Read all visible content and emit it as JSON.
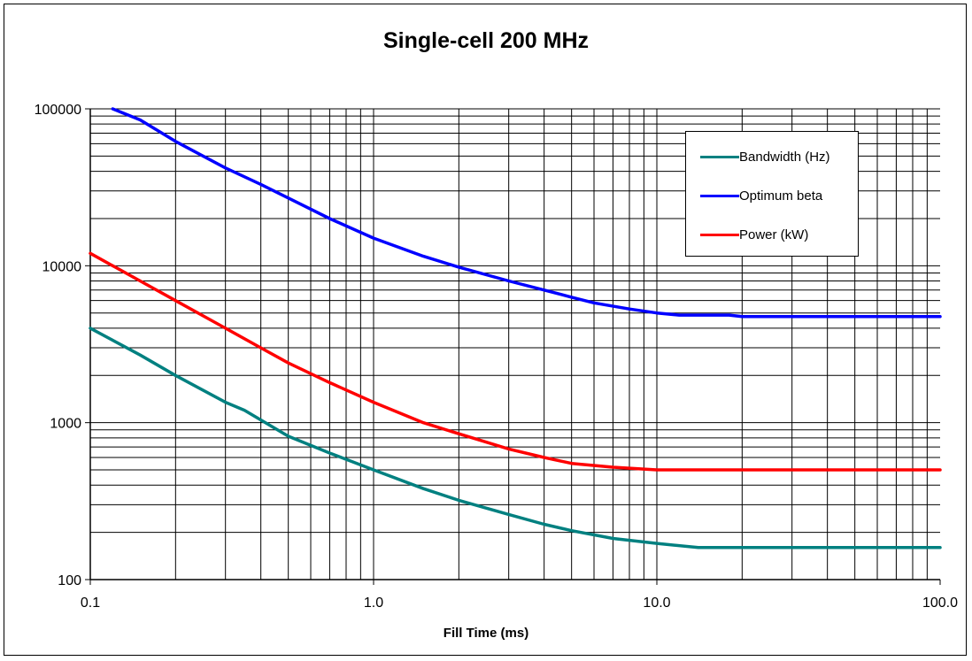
{
  "chart_data": {
    "type": "line",
    "title": "Single-cell 200 MHz",
    "xlabel": "Fill Time (ms)",
    "ylabel": "",
    "x_scale": "log",
    "y_scale": "log",
    "xlim": [
      0.1,
      100
    ],
    "ylim": [
      100,
      100000
    ],
    "x_ticks": [
      "0.1",
      "1.0",
      "10.0",
      "100.0"
    ],
    "y_ticks": [
      "100",
      "1000",
      "10000",
      "100000"
    ],
    "grid": true,
    "legend_position": "top-right",
    "series": [
      {
        "name": "Bandwidth (Hz)",
        "color": "#008080",
        "points": [
          [
            0.1,
            4000
          ],
          [
            0.15,
            2700
          ],
          [
            0.2,
            2000
          ],
          [
            0.3,
            1350
          ],
          [
            0.35,
            1200
          ],
          [
            0.5,
            820
          ],
          [
            0.7,
            640
          ],
          [
            1.0,
            500
          ],
          [
            1.5,
            380
          ],
          [
            2.0,
            320
          ],
          [
            3.0,
            260
          ],
          [
            4.0,
            225
          ],
          [
            5.0,
            205
          ],
          [
            7.0,
            183
          ],
          [
            10.0,
            170
          ],
          [
            14.0,
            160
          ],
          [
            20.0,
            160
          ],
          [
            50.0,
            160
          ],
          [
            100.0,
            160
          ]
        ]
      },
      {
        "name": "Optimum beta",
        "color": "#0000FF",
        "points": [
          [
            0.12,
            100000
          ],
          [
            0.15,
            85000
          ],
          [
            0.2,
            62000
          ],
          [
            0.3,
            42000
          ],
          [
            0.4,
            33000
          ],
          [
            0.5,
            27000
          ],
          [
            0.7,
            20000
          ],
          [
            1.0,
            15000
          ],
          [
            1.5,
            11500
          ],
          [
            2.0,
            9800
          ],
          [
            3.0,
            8000
          ],
          [
            4.0,
            7000
          ],
          [
            5.0,
            6300
          ],
          [
            6.0,
            5800
          ],
          [
            8.0,
            5300
          ],
          [
            10.0,
            5000
          ],
          [
            12.0,
            4850
          ],
          [
            18.0,
            4850
          ],
          [
            20.0,
            4750
          ],
          [
            50.0,
            4750
          ],
          [
            100.0,
            4750
          ]
        ]
      },
      {
        "name": "Power (kW)",
        "color": "#FF0000",
        "points": [
          [
            0.1,
            12000
          ],
          [
            0.15,
            8000
          ],
          [
            0.2,
            6000
          ],
          [
            0.3,
            4000
          ],
          [
            0.4,
            3000
          ],
          [
            0.5,
            2400
          ],
          [
            0.7,
            1800
          ],
          [
            1.0,
            1350
          ],
          [
            1.5,
            1000
          ],
          [
            2.0,
            850
          ],
          [
            3.0,
            680
          ],
          [
            4.0,
            600
          ],
          [
            5.0,
            550
          ],
          [
            7.0,
            520
          ],
          [
            10.0,
            500
          ],
          [
            20.0,
            500
          ],
          [
            50.0,
            500
          ],
          [
            100.0,
            500
          ]
        ]
      }
    ]
  }
}
